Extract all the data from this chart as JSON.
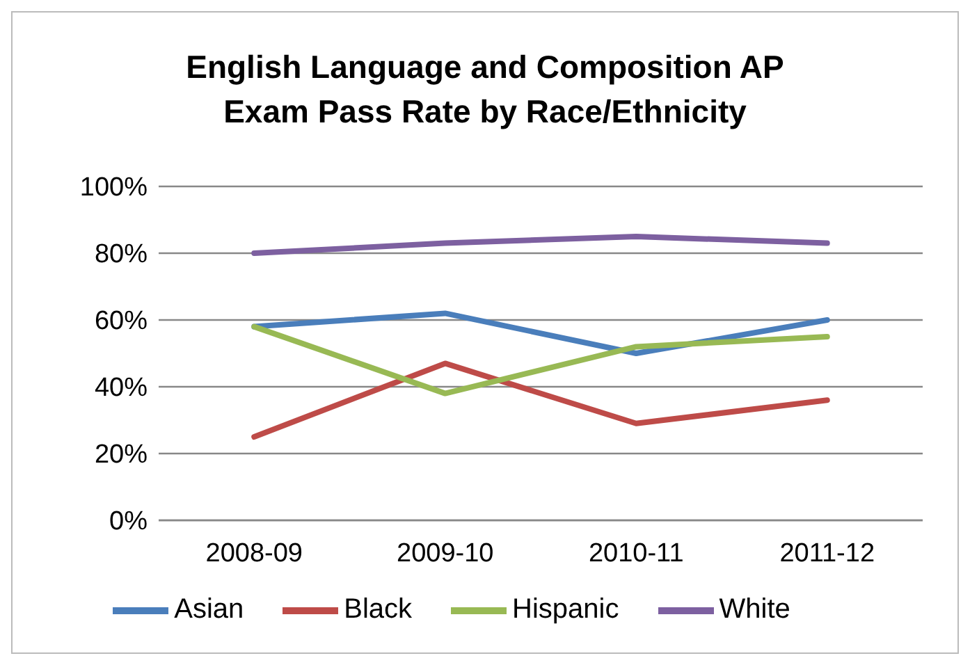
{
  "chart_data": {
    "type": "line",
    "title": "English Language and Composition AP Exam Pass Rate by Race/Ethnicity",
    "categories": [
      "2008-09",
      "2009-10",
      "2010-11",
      "2011-12"
    ],
    "series": [
      {
        "name": "Asian",
        "color": "#4a7ebb",
        "values": [
          58,
          62,
          50,
          60
        ]
      },
      {
        "name": "Black",
        "color": "#be4b48",
        "values": [
          25,
          47,
          29,
          36
        ]
      },
      {
        "name": "Hispanic",
        "color": "#98b954",
        "values": [
          58,
          38,
          52,
          55
        ]
      },
      {
        "name": "White",
        "color": "#7d60a0",
        "values": [
          80,
          83,
          85,
          83
        ]
      }
    ],
    "ylim": [
      0,
      100
    ],
    "yticks": [
      {
        "value": 0,
        "label": "0%"
      },
      {
        "value": 20,
        "label": "20%"
      },
      {
        "value": 40,
        "label": "40%"
      },
      {
        "value": 60,
        "label": "60%"
      },
      {
        "value": 80,
        "label": "80%"
      },
      {
        "value": 100,
        "label": "100%"
      }
    ],
    "grid": "y",
    "legend": "bottom",
    "marker": "none",
    "line_style": "solid"
  }
}
